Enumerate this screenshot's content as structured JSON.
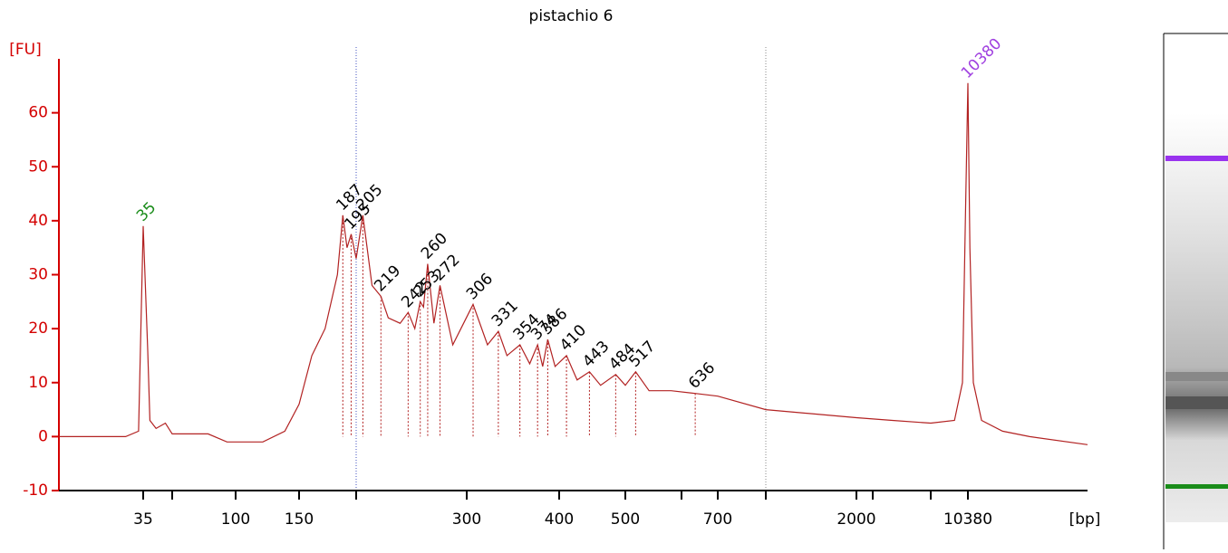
{
  "chart_data": {
    "type": "line",
    "title": "pistachio 6",
    "y_label": "[FU]",
    "x_label": "[bp]",
    "xlim": [
      12,
      37000
    ],
    "ylim": [
      -10,
      70
    ],
    "xticks": [
      35,
      {
        "value": 50,
        "label": null
      },
      100,
      150,
      {
        "value": 200,
        "label": null
      },
      300,
      400,
      500,
      {
        "value": 600,
        "label": null
      },
      700,
      {
        "value": 1000,
        "label": null
      },
      2000,
      {
        "value": 3000,
        "label": null
      },
      {
        "value": 7000,
        "label": null
      },
      10380
    ],
    "yticks": [
      -10,
      0,
      10,
      20,
      30,
      40,
      50,
      60
    ],
    "axis_color": "#d40000",
    "color": "#b22222",
    "x": [
      12,
      28,
      33,
      35,
      37,
      38,
      41,
      46,
      50,
      74,
      91,
      119,
      137,
      150,
      160,
      171,
      182,
      187,
      191,
      195,
      200,
      205,
      212,
      219,
      225,
      235,
      242,
      248,
      253,
      256,
      260,
      266,
      272,
      285,
      306,
      320,
      331,
      340,
      354,
      365,
      374,
      380,
      386,
      395,
      410,
      425,
      443,
      460,
      484,
      500,
      517,
      540,
      580,
      636,
      700,
      1000,
      2000,
      4000,
      7000,
      9000,
      9800,
      10100,
      10380,
      10600,
      11000,
      12000,
      15000,
      20000,
      37000
    ],
    "values": [
      0,
      0,
      1,
      39,
      16,
      3,
      1.5,
      2.5,
      0.5,
      0.5,
      -1,
      -1,
      1,
      6,
      15,
      20,
      30,
      41,
      35,
      37.5,
      33,
      41,
      28,
      26,
      22,
      21,
      23,
      20,
      25,
      24,
      32,
      21,
      28,
      17,
      24.5,
      17,
      19.5,
      15,
      17,
      13.5,
      17,
      13,
      18,
      13,
      15,
      10.5,
      12,
      9.5,
      11.5,
      9.5,
      12,
      8.5,
      8.5,
      8,
      7.5,
      5,
      3.5,
      3,
      2.5,
      3,
      10,
      40,
      65.5,
      35,
      10,
      3,
      1,
      0,
      -1.5
    ],
    "peaks": {
      "x": [
        35,
        187,
        195,
        205,
        219,
        242,
        253,
        260,
        272,
        306,
        331,
        354,
        374,
        386,
        410,
        443,
        484,
        517,
        636,
        10380
      ],
      "values": [
        39,
        41,
        37.5,
        41,
        26,
        23,
        25,
        32,
        28,
        24.5,
        19.5,
        17,
        17,
        18,
        15,
        12,
        11.5,
        12,
        8,
        65.5
      ],
      "colors": [
        "#1a8c1a",
        "#000000",
        "#000000",
        "#000000",
        "#000000",
        "#000000",
        "#000000",
        "#000000",
        "#000000",
        "#000000",
        "#000000",
        "#000000",
        "#000000",
        "#000000",
        "#000000",
        "#000000",
        "#000000",
        "#000000",
        "#000000",
        "#a040e0"
      ]
    }
  }
}
